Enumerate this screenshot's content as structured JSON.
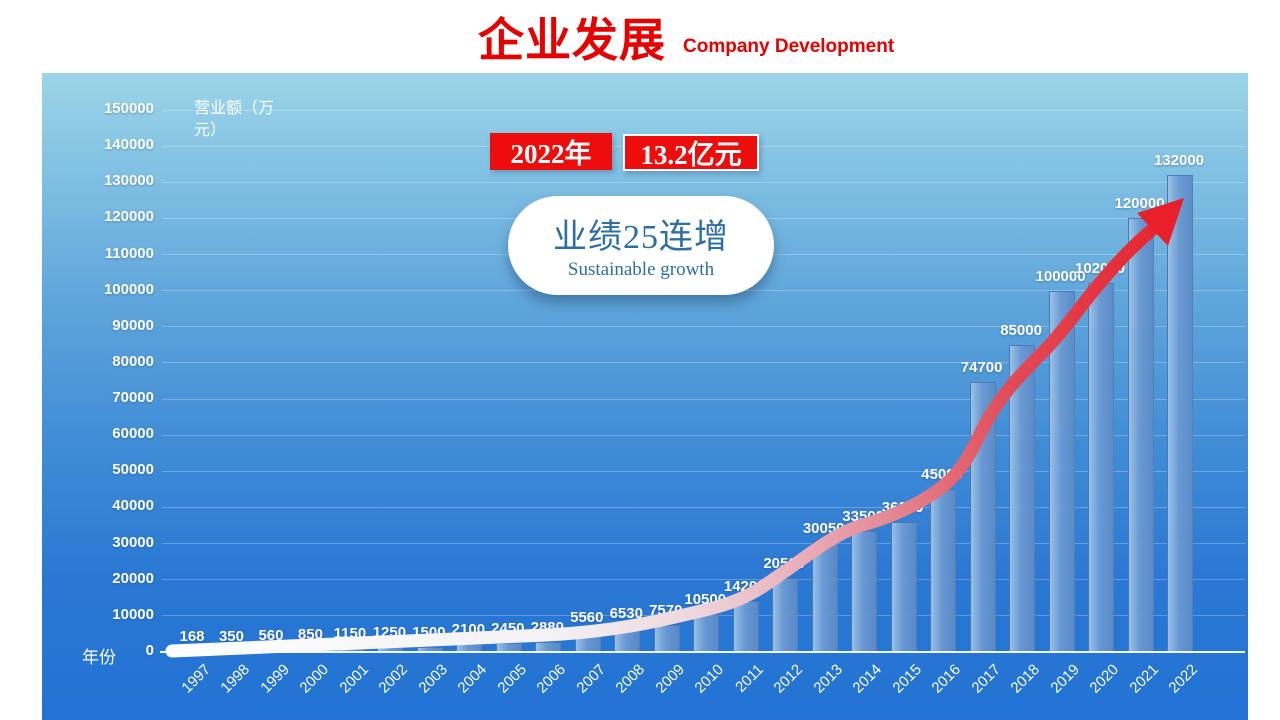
{
  "header": {
    "title": "企业发展",
    "subtitle": "Company Development"
  },
  "annotations": {
    "year_box": "2022年",
    "amount_box": "13.2亿元",
    "bubble_line1": "业绩25连增",
    "bubble_line2": "Sustainable growth"
  },
  "chart_data": {
    "type": "bar",
    "title": "企业发展 Company Development",
    "xlabel": "年份",
    "ylabel": "营业额（万元）",
    "ylabel_lines": [
      "营业额（万",
      "元）"
    ],
    "categories": [
      "1997",
      "1998",
      "1999",
      "2000",
      "2001",
      "2002",
      "2003",
      "2004",
      "2005",
      "2006",
      "2007",
      "2008",
      "2009",
      "2010",
      "2011",
      "2012",
      "2013",
      "2014",
      "2015",
      "2016",
      "2017",
      "2018",
      "2019",
      "2020",
      "2021",
      "2022"
    ],
    "values": [
      168,
      350,
      560,
      850,
      1150,
      1250,
      1500,
      2100,
      2450,
      2880,
      5560,
      6530,
      7570,
      10500,
      14200,
      20500,
      30050,
      33500,
      36000,
      45000,
      74700,
      85000,
      100000,
      102000,
      120000,
      132000
    ],
    "ylim": [
      0,
      150000
    ],
    "ytick_step": 10000,
    "grid": "horizontal",
    "legend": "none",
    "annotation_arrow": "growth trend arrow, white to red, pointing up-right"
  },
  "colors": {
    "title_red": "#e60000",
    "box_red": "#ee0d0d",
    "bubble_text": "#2d6ea5",
    "bar_fill": "#6a98d2",
    "panel_top": "#9cd5e9",
    "panel_bottom": "#2273d4",
    "arrow_start": "#ffffff",
    "arrow_end": "#e8202a",
    "axis_text": "#ffffff"
  }
}
